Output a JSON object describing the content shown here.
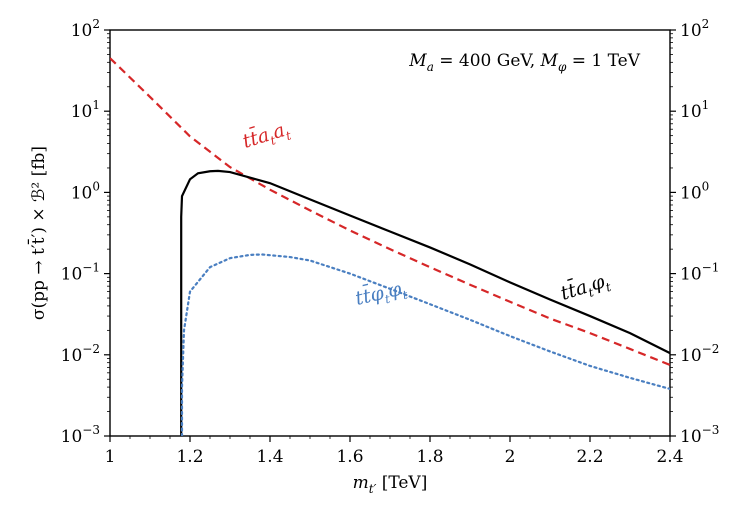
{
  "chart_data": {
    "type": "line",
    "title": "",
    "annotation": {
      "prefix_M": "M",
      "sub_a": "a",
      "eq1": " = 400 GeV, ",
      "prefix_M2": "M",
      "sub_phi": "φ",
      "eq2": " = 1 TeV"
    },
    "xlabel": {
      "var": "m",
      "sub": "t′",
      "unit": " [TeV]"
    },
    "ylabel": "σ(pp → t′t̄′) × ℬ² [fb]",
    "xlim": [
      1.0,
      2.4
    ],
    "ylim_log10": [
      -3,
      2
    ],
    "yscale": "log",
    "x_ticks": [
      "1",
      "1.2",
      "1.4",
      "1.6",
      "1.8",
      "2",
      "2.2",
      "2.4"
    ],
    "x_tick_values": [
      1.0,
      1.2,
      1.4,
      1.6,
      1.8,
      2.0,
      2.2,
      2.4
    ],
    "y_tick_exponents": [
      -3,
      -2,
      -1,
      0,
      1,
      2
    ],
    "y_tick_base": "10",
    "series": [
      {
        "name": "t t̄ a_t a_t",
        "label_main": "tt̄a",
        "label_sub1": "t",
        "label_mid": "a",
        "label_sub2": "t",
        "color": "#d62728",
        "dash": "dashed",
        "x": [
          1.0,
          1.1,
          1.2,
          1.3,
          1.4,
          1.5,
          1.6,
          1.7,
          1.8,
          1.9,
          2.0,
          2.1,
          2.2,
          2.3,
          2.4
        ],
        "y": [
          45,
          15,
          4.9,
          2.05,
          1.08,
          0.6,
          0.34,
          0.2,
          0.12,
          0.073,
          0.045,
          0.028,
          0.0185,
          0.0118,
          0.0075
        ]
      },
      {
        "name": "t t̄ a_t φ_t",
        "label_main": "tt̄a",
        "label_sub1": "t",
        "label_mid": "φ",
        "label_sub2": "t",
        "color": "#000000",
        "dash": "solid",
        "x": [
          1.178,
          1.178,
          1.18,
          1.2,
          1.22,
          1.25,
          1.27,
          1.3,
          1.4,
          1.5,
          1.6,
          1.7,
          1.8,
          1.9,
          2.0,
          2.1,
          2.2,
          2.3,
          2.4
        ],
        "y": [
          0.001,
          0.5,
          0.9,
          1.45,
          1.72,
          1.82,
          1.84,
          1.78,
          1.3,
          0.82,
          0.52,
          0.33,
          0.21,
          0.13,
          0.078,
          0.048,
          0.03,
          0.0185,
          0.0105
        ]
      },
      {
        "name": "t t̄ φ_t φ_t",
        "label_main": "tt̄φ",
        "label_sub1": "t",
        "label_mid": "φ",
        "label_sub2": "t",
        "color": "#4a7fc1",
        "dash": "dotted",
        "x": [
          1.18,
          1.18,
          1.185,
          1.2,
          1.25,
          1.3,
          1.35,
          1.38,
          1.45,
          1.5,
          1.6,
          1.7,
          1.8,
          1.9,
          2.0,
          2.1,
          2.2,
          2.3,
          2.4
        ],
        "y": [
          0.001,
          0.004,
          0.02,
          0.06,
          0.12,
          0.155,
          0.17,
          0.172,
          0.16,
          0.145,
          0.1,
          0.065,
          0.042,
          0.027,
          0.017,
          0.011,
          0.0073,
          0.0052,
          0.0038
        ]
      }
    ]
  }
}
